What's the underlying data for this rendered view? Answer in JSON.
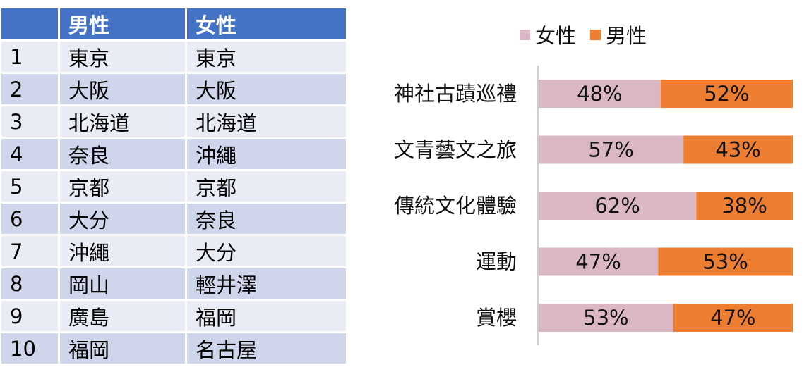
{
  "table": {
    "headers": [
      "",
      "男性",
      "女性"
    ],
    "rows": [
      [
        "1",
        "東京",
        "東京"
      ],
      [
        "2",
        "大阪",
        "大阪"
      ],
      [
        "3",
        "北海道",
        "北海道"
      ],
      [
        "4",
        "奈良",
        "沖繩"
      ],
      [
        "5",
        "京都",
        "京都"
      ],
      [
        "6",
        "大分",
        "奈良"
      ],
      [
        "7",
        "沖繩",
        "大分"
      ],
      [
        "8",
        "岡山",
        "輕井澤"
      ],
      [
        "9",
        "廣島",
        "福岡"
      ],
      [
        "10",
        "福岡",
        "名古屋"
      ]
    ]
  },
  "chart_data": {
    "type": "bar",
    "orientation": "horizontal",
    "stacked": "percent",
    "categories": [
      "神社古蹟巡禮",
      "文青藝文之旅",
      "傳統文化體驗",
      "運動",
      "賞櫻"
    ],
    "series": [
      {
        "name": "女性",
        "color": "#dbb7c6",
        "values": [
          48,
          57,
          62,
          47,
          53
        ],
        "labels": [
          "48%",
          "57%",
          "62%",
          "47%",
          "53%"
        ]
      },
      {
        "name": "男性",
        "color": "#ed7d31",
        "values": [
          52,
          43,
          38,
          53,
          47
        ],
        "labels": [
          "52%",
          "43%",
          "38%",
          "53%",
          "47%"
        ]
      }
    ],
    "xlim": [
      0,
      100
    ],
    "legend_position": "top",
    "grid": false
  }
}
